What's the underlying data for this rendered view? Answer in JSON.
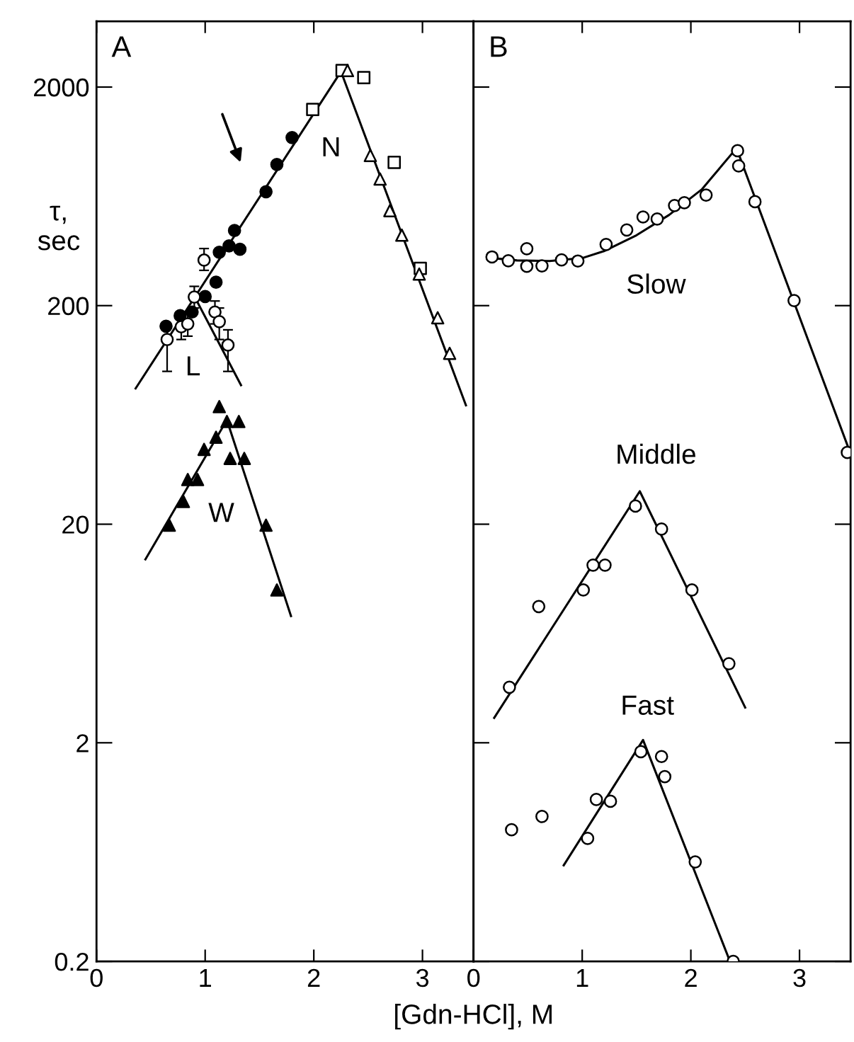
{
  "chart_data": [
    {
      "type": "scatter",
      "title": "A",
      "ylabel": "τ,\nsec",
      "xlabel": "[Gdn-HCl], M",
      "log": "y",
      "xlim": [
        0,
        3.47
      ],
      "ylim": [
        0.2,
        4000
      ],
      "xticks": [
        0,
        1,
        2,
        3
      ],
      "yticks": [
        0.2,
        2,
        20,
        200,
        2000
      ],
      "grid": false,
      "legend": false,
      "annotations": [
        "N",
        "L",
        "W"
      ],
      "series": [
        {
          "marker": "circle",
          "color": "#000000",
          "x": [
            0.64,
            0.77,
            0.88,
            1.0,
            1.1,
            1.13,
            1.22,
            1.32,
            1.27,
            1.56,
            1.66,
            1.8
          ],
          "values": [
            161,
            180,
            187,
            220,
            256,
            351,
            375,
            362,
            441,
            664,
            885,
            1175
          ]
        },
        {
          "marker": "circle",
          "color": "#ffffff",
          "x": [
            0.65,
            0.78,
            0.84,
            0.9,
            0.99,
            1.09,
            1.13,
            1.21
          ],
          "values": [
            140,
            160,
            165,
            219,
            323,
            187,
            169,
            132
          ],
          "errors": [
            [
              100,
              160
            ],
            [
              140,
              185
            ],
            [
              145,
              185
            ],
            [
              195,
              245
            ],
            [
              290,
              365
            ],
            [
              165,
              210
            ],
            [
              140,
              195
            ],
            [
              100,
              155
            ]
          ]
        },
        {
          "marker": "square",
          "color": "#ffffff",
          "x": [
            1.99,
            2.26,
            2.46,
            2.74,
            2.98
          ],
          "values": [
            1580,
            2380,
            2210,
            904,
            296
          ]
        },
        {
          "marker": "triangle",
          "color": "#ffffff",
          "x": [
            2.31,
            2.52,
            2.61,
            2.7,
            2.81,
            2.97,
            3.14,
            3.25
          ],
          "values": [
            2380,
            973,
            759,
            544,
            420,
            279,
            176,
            121
          ]
        },
        {
          "marker": "triangle",
          "color": "#000000",
          "x": [
            1.13,
            1.2,
            1.31,
            1.1,
            0.99,
            1.23,
            1.36,
            0.84,
            0.93,
            0.8,
            0.67,
            1.56,
            1.66
          ],
          "values": [
            69,
            59,
            59,
            50,
            44,
            40,
            40,
            32,
            32,
            25.4,
            19.8,
            19.8,
            10
          ]
        },
        {
          "type": "line",
          "marker": "none",
          "color": "#000000",
          "x": [
            0.36,
            2.25,
            3.4
          ],
          "values": [
            83.6,
            2355,
            70
          ]
        },
        {
          "type": "line",
          "marker": "none",
          "color": "#000000",
          "x": [
            0.89,
            1.33
          ],
          "values": [
            226,
            86.5
          ]
        },
        {
          "type": "line",
          "marker": "none",
          "color": "#000000",
          "x": [
            0.45,
            1.2,
            1.79
          ],
          "values": [
            13.8,
            60,
            7.6
          ]
        }
      ]
    },
    {
      "type": "scatter",
      "title": "B",
      "log": "y",
      "xlim": [
        0,
        3.47
      ],
      "ylim": [
        0.2,
        4000
      ],
      "xticks": [
        0,
        1,
        2,
        3
      ],
      "yticks": [
        0.2,
        2,
        20,
        200,
        2000
      ],
      "tick_labels": "x",
      "grid": false,
      "legend": false,
      "annotations": [
        "Slow",
        "Middle",
        "Fast"
      ],
      "series": [
        {
          "marker": "circle",
          "color": "#ffffff",
          "x": [
            0.17,
            0.32,
            0.49,
            0.49,
            0.63,
            0.81,
            0.96,
            1.22,
            1.41,
            1.56,
            1.69,
            1.85,
            1.94,
            2.14,
            2.43,
            2.44,
            2.59,
            2.95,
            3.44
          ],
          "values": [
            334,
            321,
            364,
            303,
            304,
            324,
            320,
            381,
            444,
            509,
            498,
            574,
            591,
            641,
            1023,
            871,
            598,
            211,
            42.6
          ]
        },
        {
          "marker": "circle",
          "color": "#ffffff",
          "x": [
            0.33,
            0.6,
            1.01,
            1.1,
            1.21,
            1.49,
            1.73,
            2.01,
            2.35
          ],
          "values": [
            3.59,
            8.4,
            10.0,
            13.0,
            13.0,
            24.2,
            19.0,
            10.0,
            4.6
          ]
        },
        {
          "marker": "circle",
          "color": "#ffffff",
          "x": [
            0.35,
            0.63,
            1.05,
            1.13,
            1.26,
            1.54,
            1.73,
            1.76,
            2.04,
            2.39
          ],
          "values": [
            0.8,
            0.92,
            0.73,
            1.1,
            1.08,
            1.82,
            1.73,
            1.4,
            0.57,
            0.2
          ]
        },
        {
          "type": "line",
          "marker": "none",
          "color": "#000000",
          "x": [
            0.17,
            0.4,
            0.7,
            1.0,
            1.2,
            1.5,
            1.8,
            2.1,
            2.42,
            3.47
          ],
          "values": [
            330,
            322,
            320,
            330,
            355,
            420,
            520,
            680,
            1050,
            42
          ]
        },
        {
          "type": "line",
          "marker": "none",
          "color": "#000000",
          "x": [
            0.19,
            1.53,
            2.5
          ],
          "values": [
            2.6,
            28.3,
            2.9
          ]
        },
        {
          "type": "line",
          "marker": "none",
          "color": "#000000",
          "x": [
            0.83,
            1.56,
            2.36
          ],
          "values": [
            0.55,
            2.06,
            0.2
          ]
        }
      ]
    }
  ]
}
